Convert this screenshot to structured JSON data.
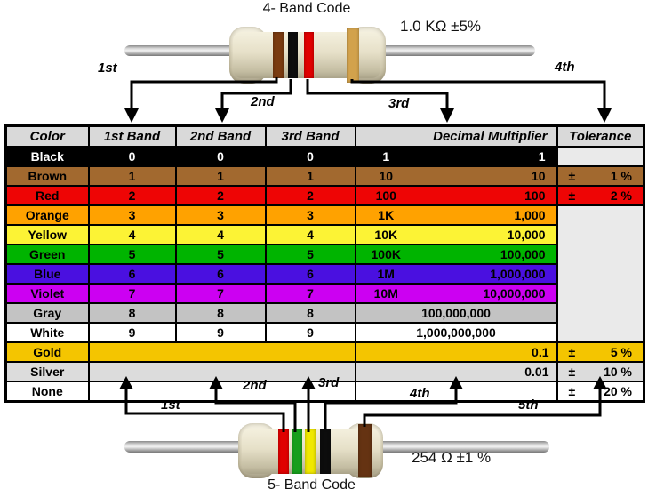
{
  "top_resistor": {
    "title": "4- Band Code",
    "value": "1.0 KΩ  ±5%",
    "arrow_labels": [
      "1st",
      "2nd",
      "3rd",
      "4th"
    ],
    "bands": [
      {
        "name": "brown",
        "hex": "#7a3b10"
      },
      {
        "name": "black",
        "hex": "#0d0d0d"
      },
      {
        "name": "red",
        "hex": "#e00000"
      },
      {
        "name": "gold",
        "hex": "#d2a24c"
      }
    ]
  },
  "bottom_resistor": {
    "title": "5- Band Code",
    "value": "254 Ω  ±1 %",
    "arrow_labels": [
      "1st",
      "2nd",
      "3rd",
      "4th",
      "5th"
    ],
    "bands": [
      {
        "name": "red",
        "hex": "#e00000"
      },
      {
        "name": "green",
        "hex": "#179e1c"
      },
      {
        "name": "yellow",
        "hex": "#f0e800"
      },
      {
        "name": "black",
        "hex": "#0d0d0d"
      },
      {
        "name": "brown",
        "hex": "#653312"
      }
    ]
  },
  "table": {
    "headers": [
      "Color",
      "1st Band",
      "2nd Band",
      "3rd Band",
      "Decimal Multiplier",
      "Tolerance"
    ],
    "empty_tolerance_bg": "#eaeaea",
    "rows": [
      {
        "name": "Black",
        "bg": "#000000",
        "fg": "#ffffff",
        "band1": "0",
        "band2": "0",
        "band3": "0",
        "mult_short": "1",
        "mult_long": "1",
        "tol": "cell",
        "tol_sign": "",
        "tol_value": "",
        "tol_bg": "#eaeaea"
      },
      {
        "name": "Brown",
        "bg": "#a2692f",
        "fg": "#000000",
        "band1": "1",
        "band2": "1",
        "band3": "1",
        "mult_short": "10",
        "mult_long": "10",
        "tol": "cell",
        "tol_sign": "±",
        "tol_value": "1 %"
      },
      {
        "name": "Red",
        "bg": "#ee0505",
        "fg": "#000000",
        "band1": "2",
        "band2": "2",
        "band3": "2",
        "mult_short": "100",
        "mult_long": "100",
        "tol": "cell",
        "tol_sign": "±",
        "tol_value": "2 %"
      },
      {
        "name": "Orange",
        "bg": "#ffa200",
        "fg": "#000000",
        "band1": "3",
        "band2": "3",
        "band3": "3",
        "mult_short": "1K",
        "mult_long": "1,000",
        "tol": "merged_start"
      },
      {
        "name": "Yellow",
        "bg": "#fcf335",
        "fg": "#000000",
        "band1": "4",
        "band2": "4",
        "band3": "4",
        "mult_short": "10K",
        "mult_long": "10,000",
        "tol": "merged"
      },
      {
        "name": "Green",
        "bg": "#00b400",
        "fg": "#000000",
        "band1": "5",
        "band2": "5",
        "band3": "5",
        "mult_short": "100K",
        "mult_long": "100,000",
        "tol": "merged"
      },
      {
        "name": "Blue",
        "bg": "#4a10e0",
        "fg": "#000000",
        "band1": "6",
        "band2": "6",
        "band3": "6",
        "mult_short": "1M",
        "mult_long": "1,000,000",
        "tol": "merged"
      },
      {
        "name": "Violet",
        "bg": "#cc00f2",
        "fg": "#000000",
        "band1": "7",
        "band2": "7",
        "band3": "7",
        "mult_short": "10M",
        "mult_long": "10,000,000",
        "tol": "merged"
      },
      {
        "name": "Gray",
        "bg": "#c3c3c3",
        "fg": "#000000",
        "band1": "8",
        "band2": "8",
        "band3": "8",
        "mult_short": "",
        "mult_long": "100,000,000",
        "tol": "merged"
      },
      {
        "name": "White",
        "bg": "#ffffff",
        "fg": "#000000",
        "band1": "9",
        "band2": "9",
        "band3": "9",
        "mult_short": "",
        "mult_long": "1,000,000,000",
        "tol": "merged"
      },
      {
        "name": "Gold",
        "bg": "#f4c500",
        "fg": "#000000",
        "band1": "",
        "band2": "",
        "band3": "",
        "mult_short": "",
        "mult_long": "0.1",
        "tol": "cell",
        "tol_sign": "±",
        "tol_value": "5 %"
      },
      {
        "name": "Silver",
        "bg": "#dcdcdc",
        "fg": "#000000",
        "band1": "",
        "band2": "",
        "band3": "",
        "mult_short": "",
        "mult_long": "0.01",
        "tol": "cell",
        "tol_sign": "±",
        "tol_value": "10 %"
      },
      {
        "name": "None",
        "bg": "#ffffff",
        "fg": "#000000",
        "band1": "",
        "band2": "",
        "band3": "",
        "mult_short": "",
        "mult_long": "",
        "tol": "cell",
        "tol_sign": "±",
        "tol_value": "20 %"
      }
    ]
  }
}
